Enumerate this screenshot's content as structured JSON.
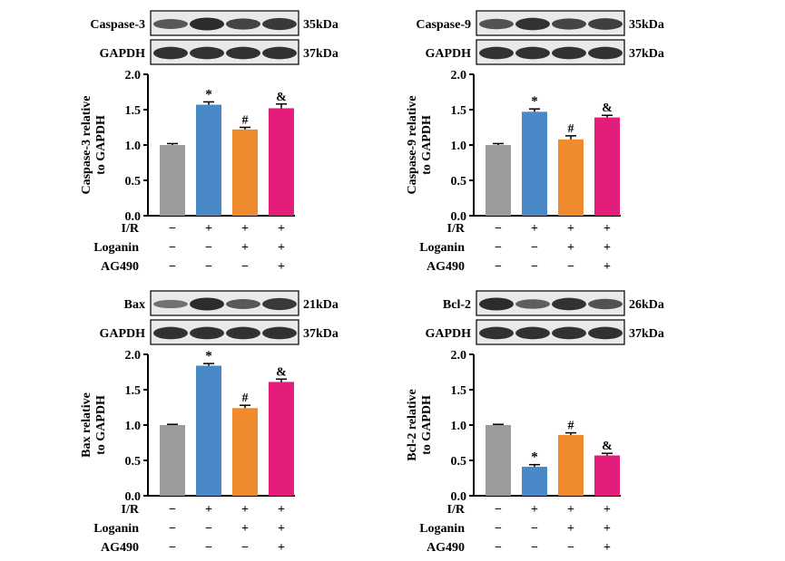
{
  "chart_data": [
    {
      "type": "bar",
      "blot_label": "Caspase-3",
      "blot_kda": "35kDa",
      "gapdh_label": "GAPDH",
      "gapdh_kda": "37kDa",
      "ylabel_line1": "Caspase-3 relative",
      "ylabel_line2": "to GAPDH",
      "ylim": [
        0,
        2.0
      ],
      "yticks": [
        "0.0",
        "0.5",
        "1.0",
        "1.5",
        "2.0"
      ],
      "values": [
        1.0,
        1.57,
        1.22,
        1.52
      ],
      "errors": [
        0.02,
        0.04,
        0.03,
        0.06
      ],
      "annotations": [
        "",
        "*",
        "#",
        "&"
      ],
      "blot_intensity": [
        0.55,
        0.9,
        0.7,
        0.8
      ]
    },
    {
      "type": "bar",
      "blot_label": "Caspase-9",
      "blot_kda": "35kDa",
      "gapdh_label": "GAPDH",
      "gapdh_kda": "37kDa",
      "ylabel_line1": "Caspase-9 relative",
      "ylabel_line2": "to GAPDH",
      "ylim": [
        0,
        2.0
      ],
      "yticks": [
        "0.0",
        "0.5",
        "1.0",
        "1.5",
        "2.0"
      ],
      "values": [
        1.0,
        1.47,
        1.08,
        1.39
      ],
      "errors": [
        0.02,
        0.04,
        0.05,
        0.03
      ],
      "annotations": [
        "",
        "*",
        "#",
        "&"
      ],
      "blot_intensity": [
        0.6,
        0.85,
        0.7,
        0.75
      ]
    },
    {
      "type": "bar",
      "blot_label": "Bax",
      "blot_kda": "21kDa",
      "gapdh_label": "GAPDH",
      "gapdh_kda": "37kDa",
      "ylabel_line1": "Bax relative",
      "ylabel_line2": "to GAPDH",
      "ylim": [
        0,
        2.0
      ],
      "yticks": [
        "0.0",
        "0.5",
        "1.0",
        "1.5",
        "2.0"
      ],
      "values": [
        1.0,
        1.84,
        1.24,
        1.61
      ],
      "errors": [
        0.01,
        0.03,
        0.04,
        0.04
      ],
      "annotations": [
        "",
        "*",
        "#",
        "&"
      ],
      "blot_intensity": [
        0.35,
        0.9,
        0.55,
        0.8
      ]
    },
    {
      "type": "bar",
      "blot_label": "Bcl-2",
      "blot_kda": "26kDa",
      "gapdh_label": "GAPDH",
      "gapdh_kda": "37kDa",
      "ylabel_line1": "Bcl-2 relative",
      "ylabel_line2": "to GAPDH",
      "ylim": [
        0,
        2.0
      ],
      "yticks": [
        "0.0",
        "0.5",
        "1.0",
        "1.5",
        "2.0"
      ],
      "values": [
        1.0,
        0.41,
        0.86,
        0.57
      ],
      "errors": [
        0.01,
        0.03,
        0.03,
        0.03
      ],
      "annotations": [
        "",
        "*",
        "#",
        "&"
      ],
      "blot_intensity": [
        0.9,
        0.5,
        0.85,
        0.6
      ]
    }
  ],
  "bar_colors": [
    "#9b9b9e",
    "#4a89c8",
    "#ef8a2e",
    "#e41d7a"
  ],
  "groups": [
    {
      "label": "I/R",
      "signs": [
        "−",
        "+",
        "+",
        "+"
      ]
    },
    {
      "label": "Loganin",
      "signs": [
        "−",
        "−",
        "+",
        "+"
      ]
    },
    {
      "label": "AG490",
      "signs": [
        "−",
        "−",
        "−",
        "+"
      ]
    }
  ]
}
